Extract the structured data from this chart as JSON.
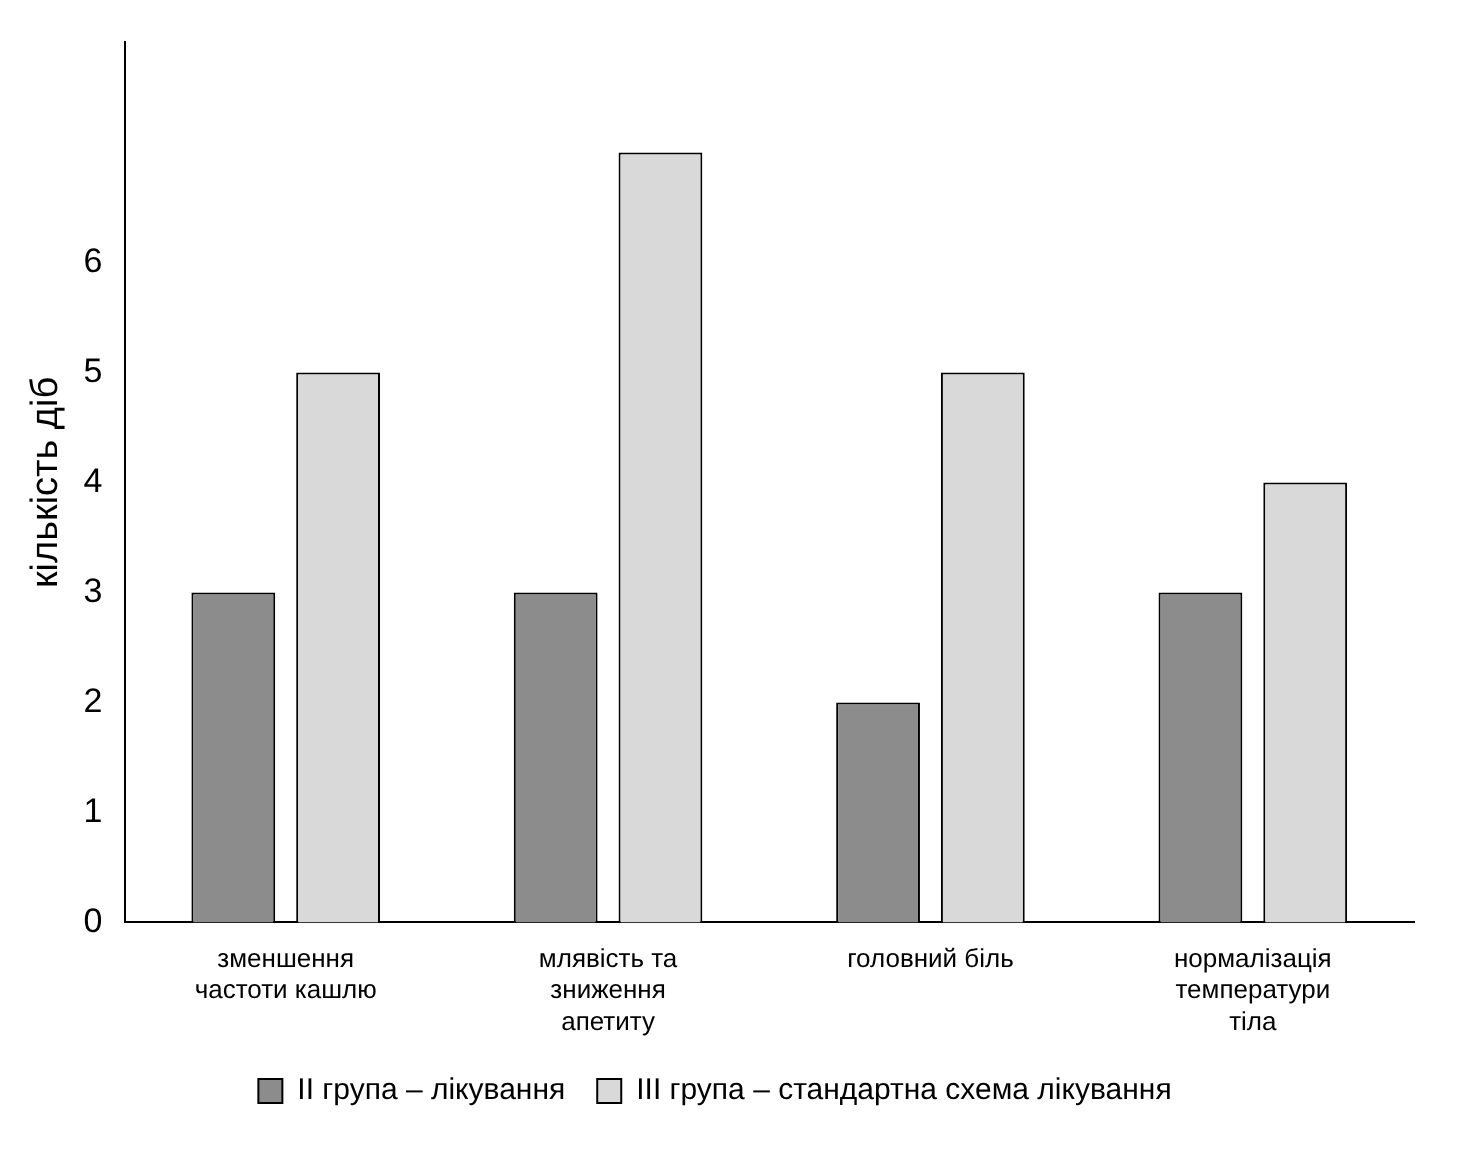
{
  "chart_data": {
    "type": "bar",
    "ylabel": "кількість діб",
    "categories": [
      "зменшення частоти кашлю",
      "млявість та зниження апетиту",
      "головний біль",
      "нормалізація температури тіла"
    ],
    "series": [
      {
        "name": "II група – лікування",
        "color": "#8c8c8c",
        "values": [
          3,
          3,
          2,
          3
        ]
      },
      {
        "name": "III група – стандартна схема лікування",
        "color": "#d9d9d9",
        "values": [
          5,
          7,
          5,
          4
        ]
      }
    ],
    "ylim": [
      0,
      8
    ],
    "yticks": [
      0,
      1,
      2,
      3,
      4,
      5,
      6
    ],
    "grid": false,
    "legend": "bottom"
  }
}
